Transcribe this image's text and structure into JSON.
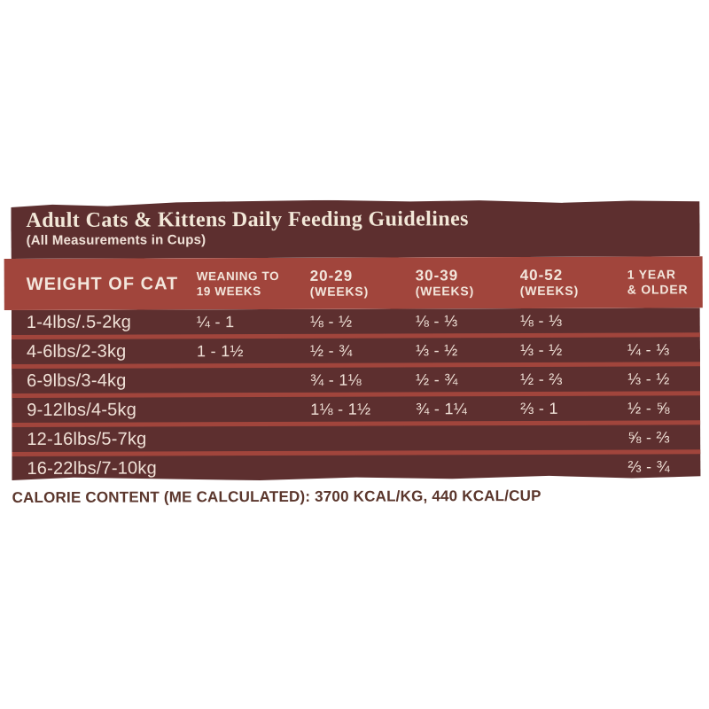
{
  "label": {
    "title": "Adult Cats & Kittens Daily Feeding Guidelines",
    "subtitle": "(All Measurements in Cups)",
    "columns": [
      {
        "line1": "WEIGHT OF CAT",
        "line2": ""
      },
      {
        "line1": "WEANING TO",
        "line2": "19 WEEKS"
      },
      {
        "line1": "20-29",
        "line2": "(WEEKS)"
      },
      {
        "line1": "30-39",
        "line2": "(WEEKS)"
      },
      {
        "line1": "40-52",
        "line2": "(WEEKS)"
      },
      {
        "line1": "1 YEAR",
        "line2": "& OLDER"
      }
    ],
    "rows": [
      {
        "weight": "1-4lbs/.5-2kg",
        "values": [
          "¼ - 1",
          "⅛ - ½",
          "⅛ - ⅓",
          "⅛ - ⅓",
          ""
        ]
      },
      {
        "weight": "4-6lbs/2-3kg",
        "values": [
          "1 - 1½",
          "½ - ¾",
          "⅓ - ½",
          "⅓ - ½",
          "¼ - ⅓"
        ]
      },
      {
        "weight": "6-9lbs/3-4kg",
        "values": [
          "",
          "¾ - 1⅛",
          "½ - ¾",
          "½ - ⅔",
          "⅓ - ½"
        ]
      },
      {
        "weight": "9-12lbs/4-5kg",
        "values": [
          "",
          "1⅛ - 1½",
          "¾ - 1¼",
          "⅔ - 1",
          "½ - ⅝"
        ]
      },
      {
        "weight": "12-16lbs/5-7kg",
        "values": [
          "",
          "",
          "",
          "",
          "⅝ - ⅔"
        ]
      },
      {
        "weight": "16-22lbs/7-10kg",
        "values": [
          "",
          "",
          "",
          "",
          "⅔ - ¾"
        ]
      }
    ],
    "calorie_note": "CALORIE CONTENT (ME CALCULATED): 3700 KCAL/KG, 440 KCAL/CUP"
  },
  "colors": {
    "background": "#ffffff",
    "panel_maroon": "#5d2f2f",
    "band_brick": "#a1453c",
    "title_cream": "#f2e8d8",
    "row_text": "#f0e1d7",
    "calorie_text": "#5b362c"
  }
}
